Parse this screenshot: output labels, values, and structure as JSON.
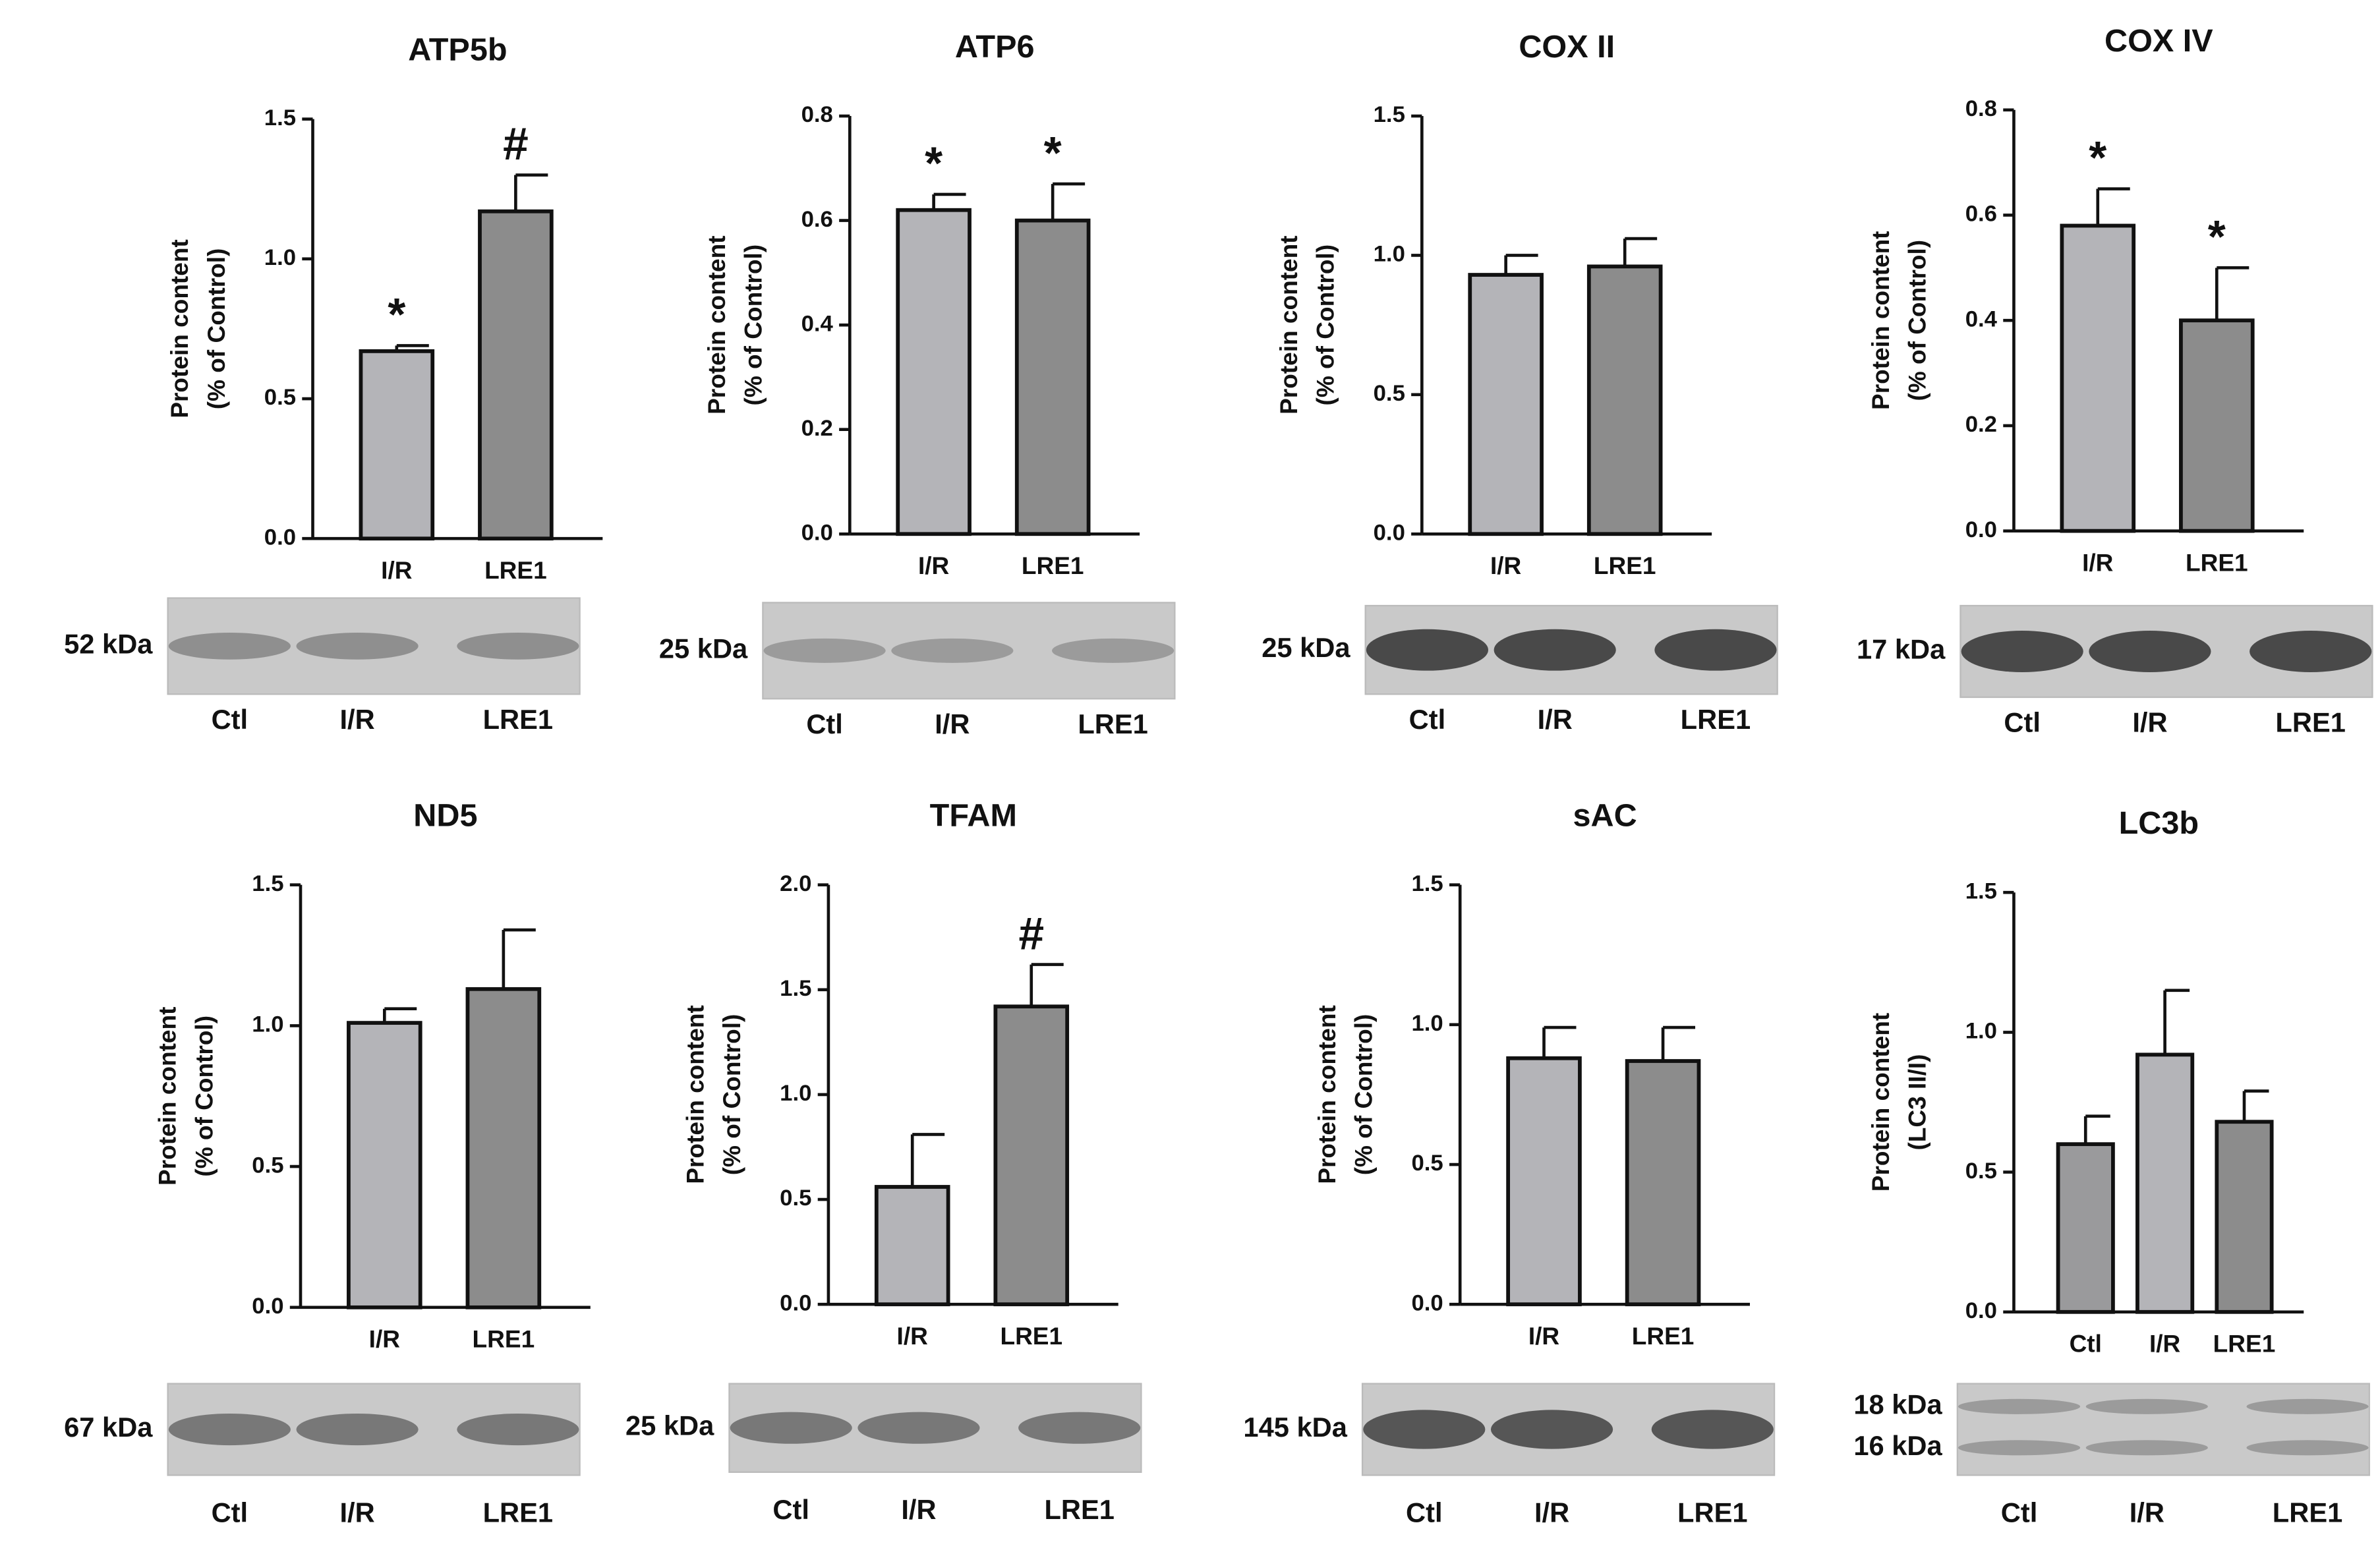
{
  "chart_data": [
    {
      "type": "bar",
      "title": "ATP5b",
      "ylabel": [
        "Protein content",
        "(% of Control)"
      ],
      "categories": [
        "I/R",
        "LRE1"
      ],
      "values": [
        0.67,
        1.17
      ],
      "errors": [
        0.02,
        0.13
      ],
      "annotations": [
        "*",
        "#"
      ],
      "colors": [
        "#b4b4b8",
        "#8c8c8c"
      ],
      "ylim": [
        0,
        1.5
      ],
      "yticks": [
        {
          "value": 0,
          "label": "0.0"
        },
        {
          "value": 0.5,
          "label": "0.5"
        },
        {
          "value": 1,
          "label": "1.0"
        },
        {
          "value": 1.5,
          "label": "1.5"
        }
      ],
      "blot": {
        "kda": [
          "52 kDa"
        ],
        "lanes": [
          "Ctl",
          "I/R",
          "LRE1"
        ]
      }
    },
    {
      "type": "bar",
      "title": "ATP6",
      "ylabel": [
        "Protein content",
        "(% of Control)"
      ],
      "categories": [
        "I/R",
        "LRE1"
      ],
      "values": [
        0.62,
        0.6
      ],
      "errors": [
        0.03,
        0.07
      ],
      "annotations": [
        "*",
        "*"
      ],
      "colors": [
        "#b4b4b8",
        "#8c8c8c"
      ],
      "ylim": [
        0,
        0.8
      ],
      "yticks": [
        {
          "value": 0,
          "label": "0.0"
        },
        0.2,
        0.4,
        0.6,
        0.8
      ],
      "blot": {
        "kda": [
          "25 kDa"
        ],
        "lanes": [
          "Ctl",
          "I/R",
          "LRE1"
        ]
      }
    },
    {
      "type": "bar",
      "title": "COX II",
      "ylabel": [
        "Protein content",
        "(% of Control)"
      ],
      "categories": [
        "I/R",
        "LRE1"
      ],
      "values": [
        0.93,
        0.96
      ],
      "errors": [
        0.07,
        0.1
      ],
      "annotations": [
        null,
        null
      ],
      "colors": [
        "#b4b4b8",
        "#8c8c8c"
      ],
      "ylim": [
        0,
        1.5
      ],
      "yticks": [
        {
          "value": 0,
          "label": "0.0"
        },
        {
          "value": 0.5,
          "label": "0.5"
        },
        {
          "value": 1,
          "label": "1.0"
        },
        {
          "value": 1.5,
          "label": "1.5"
        }
      ],
      "blot": {
        "kda": [
          "25 kDa"
        ],
        "lanes": [
          "Ctl",
          "I/R",
          "LRE1"
        ]
      }
    },
    {
      "type": "bar",
      "title": "COX IV",
      "ylabel": [
        "Protein content",
        "(% of Control)"
      ],
      "categories": [
        "I/R",
        "LRE1"
      ],
      "values": [
        0.58,
        0.4
      ],
      "errors": [
        0.07,
        0.1
      ],
      "annotations": [
        "*",
        "*"
      ],
      "colors": [
        "#b4b4b8",
        "#8c8c8c"
      ],
      "ylim": [
        0,
        0.8
      ],
      "yticks": [
        {
          "value": 0,
          "label": "0.0"
        },
        0.2,
        0.4,
        0.6,
        0.8
      ],
      "blot": {
        "kda": [
          "17 kDa"
        ],
        "lanes": [
          "Ctl",
          "I/R",
          "LRE1"
        ]
      }
    },
    {
      "type": "bar",
      "title": "ND5",
      "ylabel": [
        "Protein content",
        "(% of Control)"
      ],
      "categories": [
        "I/R",
        "LRE1"
      ],
      "values": [
        1.01,
        1.13
      ],
      "errors": [
        0.05,
        0.21
      ],
      "annotations": [
        null,
        null
      ],
      "colors": [
        "#b4b4b8",
        "#8c8c8c"
      ],
      "ylim": [
        0,
        1.5
      ],
      "yticks": [
        {
          "value": 0,
          "label": "0.0"
        },
        {
          "value": 0.5,
          "label": "0.5"
        },
        {
          "value": 1,
          "label": "1.0"
        },
        {
          "value": 1.5,
          "label": "1.5"
        }
      ],
      "blot": {
        "kda": [
          "67 kDa"
        ],
        "lanes": [
          "Ctl",
          "I/R",
          "LRE1"
        ]
      }
    },
    {
      "type": "bar",
      "title": "TFAM",
      "ylabel": [
        "Protein content",
        "(% of Control)"
      ],
      "categories": [
        "I/R",
        "LRE1"
      ],
      "values": [
        0.56,
        1.42
      ],
      "errors": [
        0.25,
        0.2
      ],
      "annotations": [
        null,
        "#"
      ],
      "colors": [
        "#b4b4b8",
        "#8c8c8c"
      ],
      "ylim": [
        0,
        2
      ],
      "yticks": [
        {
          "value": 0,
          "label": "0.0"
        },
        {
          "value": 0.5,
          "label": "0.5"
        },
        {
          "value": 1,
          "label": "1.0"
        },
        {
          "value": 1.5,
          "label": "1.5"
        },
        {
          "value": 2,
          "label": "2.0"
        }
      ],
      "blot": {
        "kda": [
          "25 kDa"
        ],
        "lanes": [
          "Ctl",
          "I/R",
          "LRE1"
        ]
      }
    },
    {
      "type": "bar",
      "title": "sAC",
      "ylabel": [
        "Protein content",
        "(% of Control)"
      ],
      "categories": [
        "I/R",
        "LRE1"
      ],
      "values": [
        0.88,
        0.87
      ],
      "errors": [
        0.11,
        0.12
      ],
      "annotations": [
        null,
        null
      ],
      "colors": [
        "#b4b4b8",
        "#8c8c8c"
      ],
      "ylim": [
        0,
        1.5
      ],
      "yticks": [
        {
          "value": 0,
          "label": "0.0"
        },
        {
          "value": 0.5,
          "label": "0.5"
        },
        {
          "value": 1,
          "label": "1.0"
        },
        {
          "value": 1.5,
          "label": "1.5"
        }
      ],
      "blot": {
        "kda": [
          "145 kDa"
        ],
        "lanes": [
          "Ctl",
          "I/R",
          "LRE1"
        ]
      }
    },
    {
      "type": "bar",
      "title": "LC3b",
      "ylabel": [
        "Protein content",
        "(LC3 II/I)"
      ],
      "categories": [
        "Ctl",
        "I/R",
        "LRE1"
      ],
      "values": [
        0.6,
        0.92,
        0.68
      ],
      "errors": [
        0.1,
        0.23,
        0.11
      ],
      "annotations": [
        null,
        null,
        null
      ],
      "colors": [
        "#9a9a9c",
        "#b4b4b8",
        "#8c8c8c"
      ],
      "ylim": [
        0,
        1.5
      ],
      "yticks": [
        {
          "value": 0,
          "label": "0.0"
        },
        {
          "value": 0.5,
          "label": "0.5"
        },
        {
          "value": 1,
          "label": "1.0"
        },
        {
          "value": 1.5,
          "label": "1.5"
        }
      ],
      "blot": {
        "kda": [
          "18 kDa",
          "16 kDa"
        ],
        "lanes": [
          "Ctl",
          "I/R",
          "LRE1"
        ]
      }
    }
  ]
}
